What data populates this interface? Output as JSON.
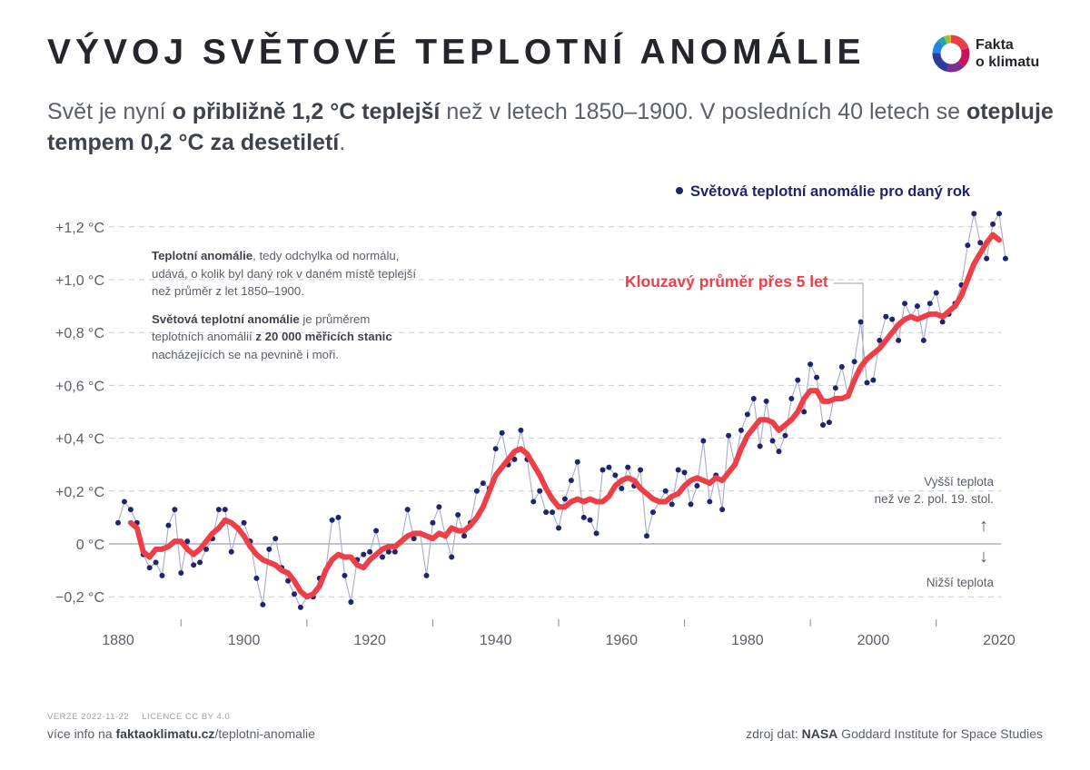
{
  "header": {
    "title": "VÝVOJ SVĚTOVÉ TEPLOTNÍ ANOMÁLIE",
    "logo_line1": "Fakta",
    "logo_line2": "o klimatu"
  },
  "subtitle": {
    "p1": "Svět je nyní ",
    "b1": "o přibližně 1,2 °C teplejší",
    "p2": " než v letech 1850–1900. V posledních 40 letech se ",
    "b2": "otepluje tempem 0,2 °C za desetiletí",
    "p3": "."
  },
  "note": {
    "b1": "Teplotní anomálie",
    "t1": ", tedy odchylka od normálu, udává, o kolik byl daný rok v daném místě teplejší než průměr z let 1850–1900.",
    "b2": "Světová teplotní anomálie",
    "t2": " je průměrem teplotních anomálií ",
    "b3": "z 20 000 měřicích stanic",
    "t3": " nacházejících se na pevnině i moři."
  },
  "side": {
    "higher_line1": "Vyšší teplota",
    "higher_line2": "než ve 2. pol. 19. stol.",
    "arrow_up": "↑",
    "arrow_down": "↓",
    "lower": "Nižší teplota"
  },
  "footer": {
    "version": "VERZE 2022-11-22",
    "license": "LICENCE CC BY 4.0",
    "info_prefix": "více info na ",
    "info_domain": "faktaoklimatu.cz",
    "info_path": "/teplotni-anomalie",
    "source_prefix": "zdroj dat: ",
    "source_bold": "NASA",
    "source_rest": " Goddard Institute for Space Studies"
  },
  "colors": {
    "dots": "#1e2470",
    "thin_line": "#a9abc9",
    "moving_avg": "#ee3f49",
    "grid": "#c7cbd0",
    "zero_line": "#a8b1c6"
  },
  "chart_data": {
    "type": "line",
    "title": "VÝVOJ SVĚTOVÉ TEPLOTNÍ ANOMÁLIE",
    "xlabel": "",
    "ylabel": "",
    "xlim": [
      1880,
      2021
    ],
    "ylim": [
      -0.27,
      1.28
    ],
    "x_ticks": [
      1880,
      1900,
      1920,
      1940,
      1960,
      1980,
      2000,
      2020
    ],
    "y_ticks": [
      -0.2,
      0,
      0.2,
      0.4,
      0.6,
      0.8,
      1.0,
      1.2
    ],
    "y_tick_labels": [
      "−0,2 °C",
      "0 °C",
      "+0,2 °C",
      "+0,4 °C",
      "+0,6 °C",
      "+0,8 °C",
      "+1,0 °C",
      "+1,2 °C"
    ],
    "grid": "horizontal dashed",
    "series": [
      {
        "name": "Světová teplotní anomálie pro daný rok",
        "style": "dots with thin line",
        "x_start": 1880,
        "values": [
          0.08,
          0.16,
          0.13,
          0.08,
          -0.04,
          -0.09,
          -0.07,
          -0.12,
          0.07,
          0.13,
          -0.11,
          0.01,
          -0.08,
          -0.07,
          -0.02,
          0.02,
          0.13,
          0.13,
          -0.03,
          0.06,
          0.08,
          0.01,
          -0.13,
          -0.23,
          -0.02,
          0.02,
          -0.09,
          -0.14,
          -0.19,
          -0.24,
          -0.2,
          -0.2,
          -0.13,
          -0.1,
          0.09,
          0.1,
          -0.12,
          -0.22,
          -0.06,
          -0.04,
          -0.03,
          0.05,
          -0.05,
          -0.03,
          -0.03,
          0.01,
          0.13,
          0.02,
          0.04,
          -0.12,
          0.08,
          0.14,
          0.03,
          -0.05,
          0.11,
          0.03,
          0.08,
          0.2,
          0.23,
          0.21,
          0.36,
          0.42,
          0.3,
          0.32,
          0.43,
          0.32,
          0.16,
          0.2,
          0.12,
          0.12,
          0.06,
          0.17,
          0.24,
          0.31,
          0.1,
          0.09,
          0.04,
          0.28,
          0.29,
          0.26,
          0.21,
          0.29,
          0.22,
          0.28,
          0.03,
          0.12,
          0.16,
          0.2,
          0.15,
          0.28,
          0.27,
          0.15,
          0.22,
          0.39,
          0.16,
          0.26,
          0.13,
          0.41,
          0.3,
          0.43,
          0.49,
          0.55,
          0.37,
          0.54,
          0.39,
          0.35,
          0.41,
          0.55,
          0.62,
          0.5,
          0.68,
          0.63,
          0.45,
          0.46,
          0.59,
          0.67,
          0.56,
          0.69,
          0.84,
          0.61,
          0.62,
          0.77,
          0.86,
          0.85,
          0.77,
          0.91,
          0.86,
          0.9,
          0.77,
          0.91,
          0.95,
          0.84,
          0.87,
          0.91,
          0.98,
          1.13,
          1.25,
          1.14,
          1.08,
          1.21,
          1.25,
          1.08
        ]
      },
      {
        "name": "Klouzavý průměr přes 5 let",
        "style": "thick red line",
        "x_start": 1882,
        "values": [
          0.08,
          0.06,
          -0.03,
          -0.05,
          -0.02,
          -0.02,
          -0.01,
          0.01,
          0.01,
          -0.02,
          -0.04,
          -0.02,
          0.01,
          0.04,
          0.06,
          0.09,
          0.08,
          0.06,
          0.03,
          -0.01,
          -0.04,
          -0.06,
          -0.07,
          -0.08,
          -0.1,
          -0.11,
          -0.14,
          -0.18,
          -0.2,
          -0.19,
          -0.16,
          -0.1,
          -0.06,
          -0.04,
          -0.05,
          -0.05,
          -0.08,
          -0.09,
          -0.06,
          -0.04,
          -0.02,
          -0.01,
          -0.01,
          0.01,
          0.03,
          0.04,
          0.04,
          0.03,
          0.02,
          0.04,
          0.03,
          0.06,
          0.05,
          0.05,
          0.07,
          0.1,
          0.14,
          0.2,
          0.26,
          0.29,
          0.32,
          0.35,
          0.36,
          0.34,
          0.3,
          0.26,
          0.21,
          0.17,
          0.14,
          0.14,
          0.16,
          0.17,
          0.16,
          0.17,
          0.16,
          0.16,
          0.18,
          0.22,
          0.24,
          0.25,
          0.24,
          0.21,
          0.19,
          0.17,
          0.16,
          0.16,
          0.18,
          0.19,
          0.22,
          0.24,
          0.25,
          0.24,
          0.23,
          0.25,
          0.24,
          0.27,
          0.3,
          0.36,
          0.41,
          0.44,
          0.47,
          0.47,
          0.46,
          0.43,
          0.45,
          0.47,
          0.5,
          0.55,
          0.58,
          0.58,
          0.54,
          0.54,
          0.55,
          0.55,
          0.56,
          0.62,
          0.67,
          0.7,
          0.72,
          0.74,
          0.77,
          0.8,
          0.83,
          0.85,
          0.86,
          0.85,
          0.86,
          0.87,
          0.87,
          0.86,
          0.88,
          0.9,
          0.94,
          1.0,
          1.06,
          1.1,
          1.14,
          1.17,
          1.15
        ]
      }
    ]
  }
}
